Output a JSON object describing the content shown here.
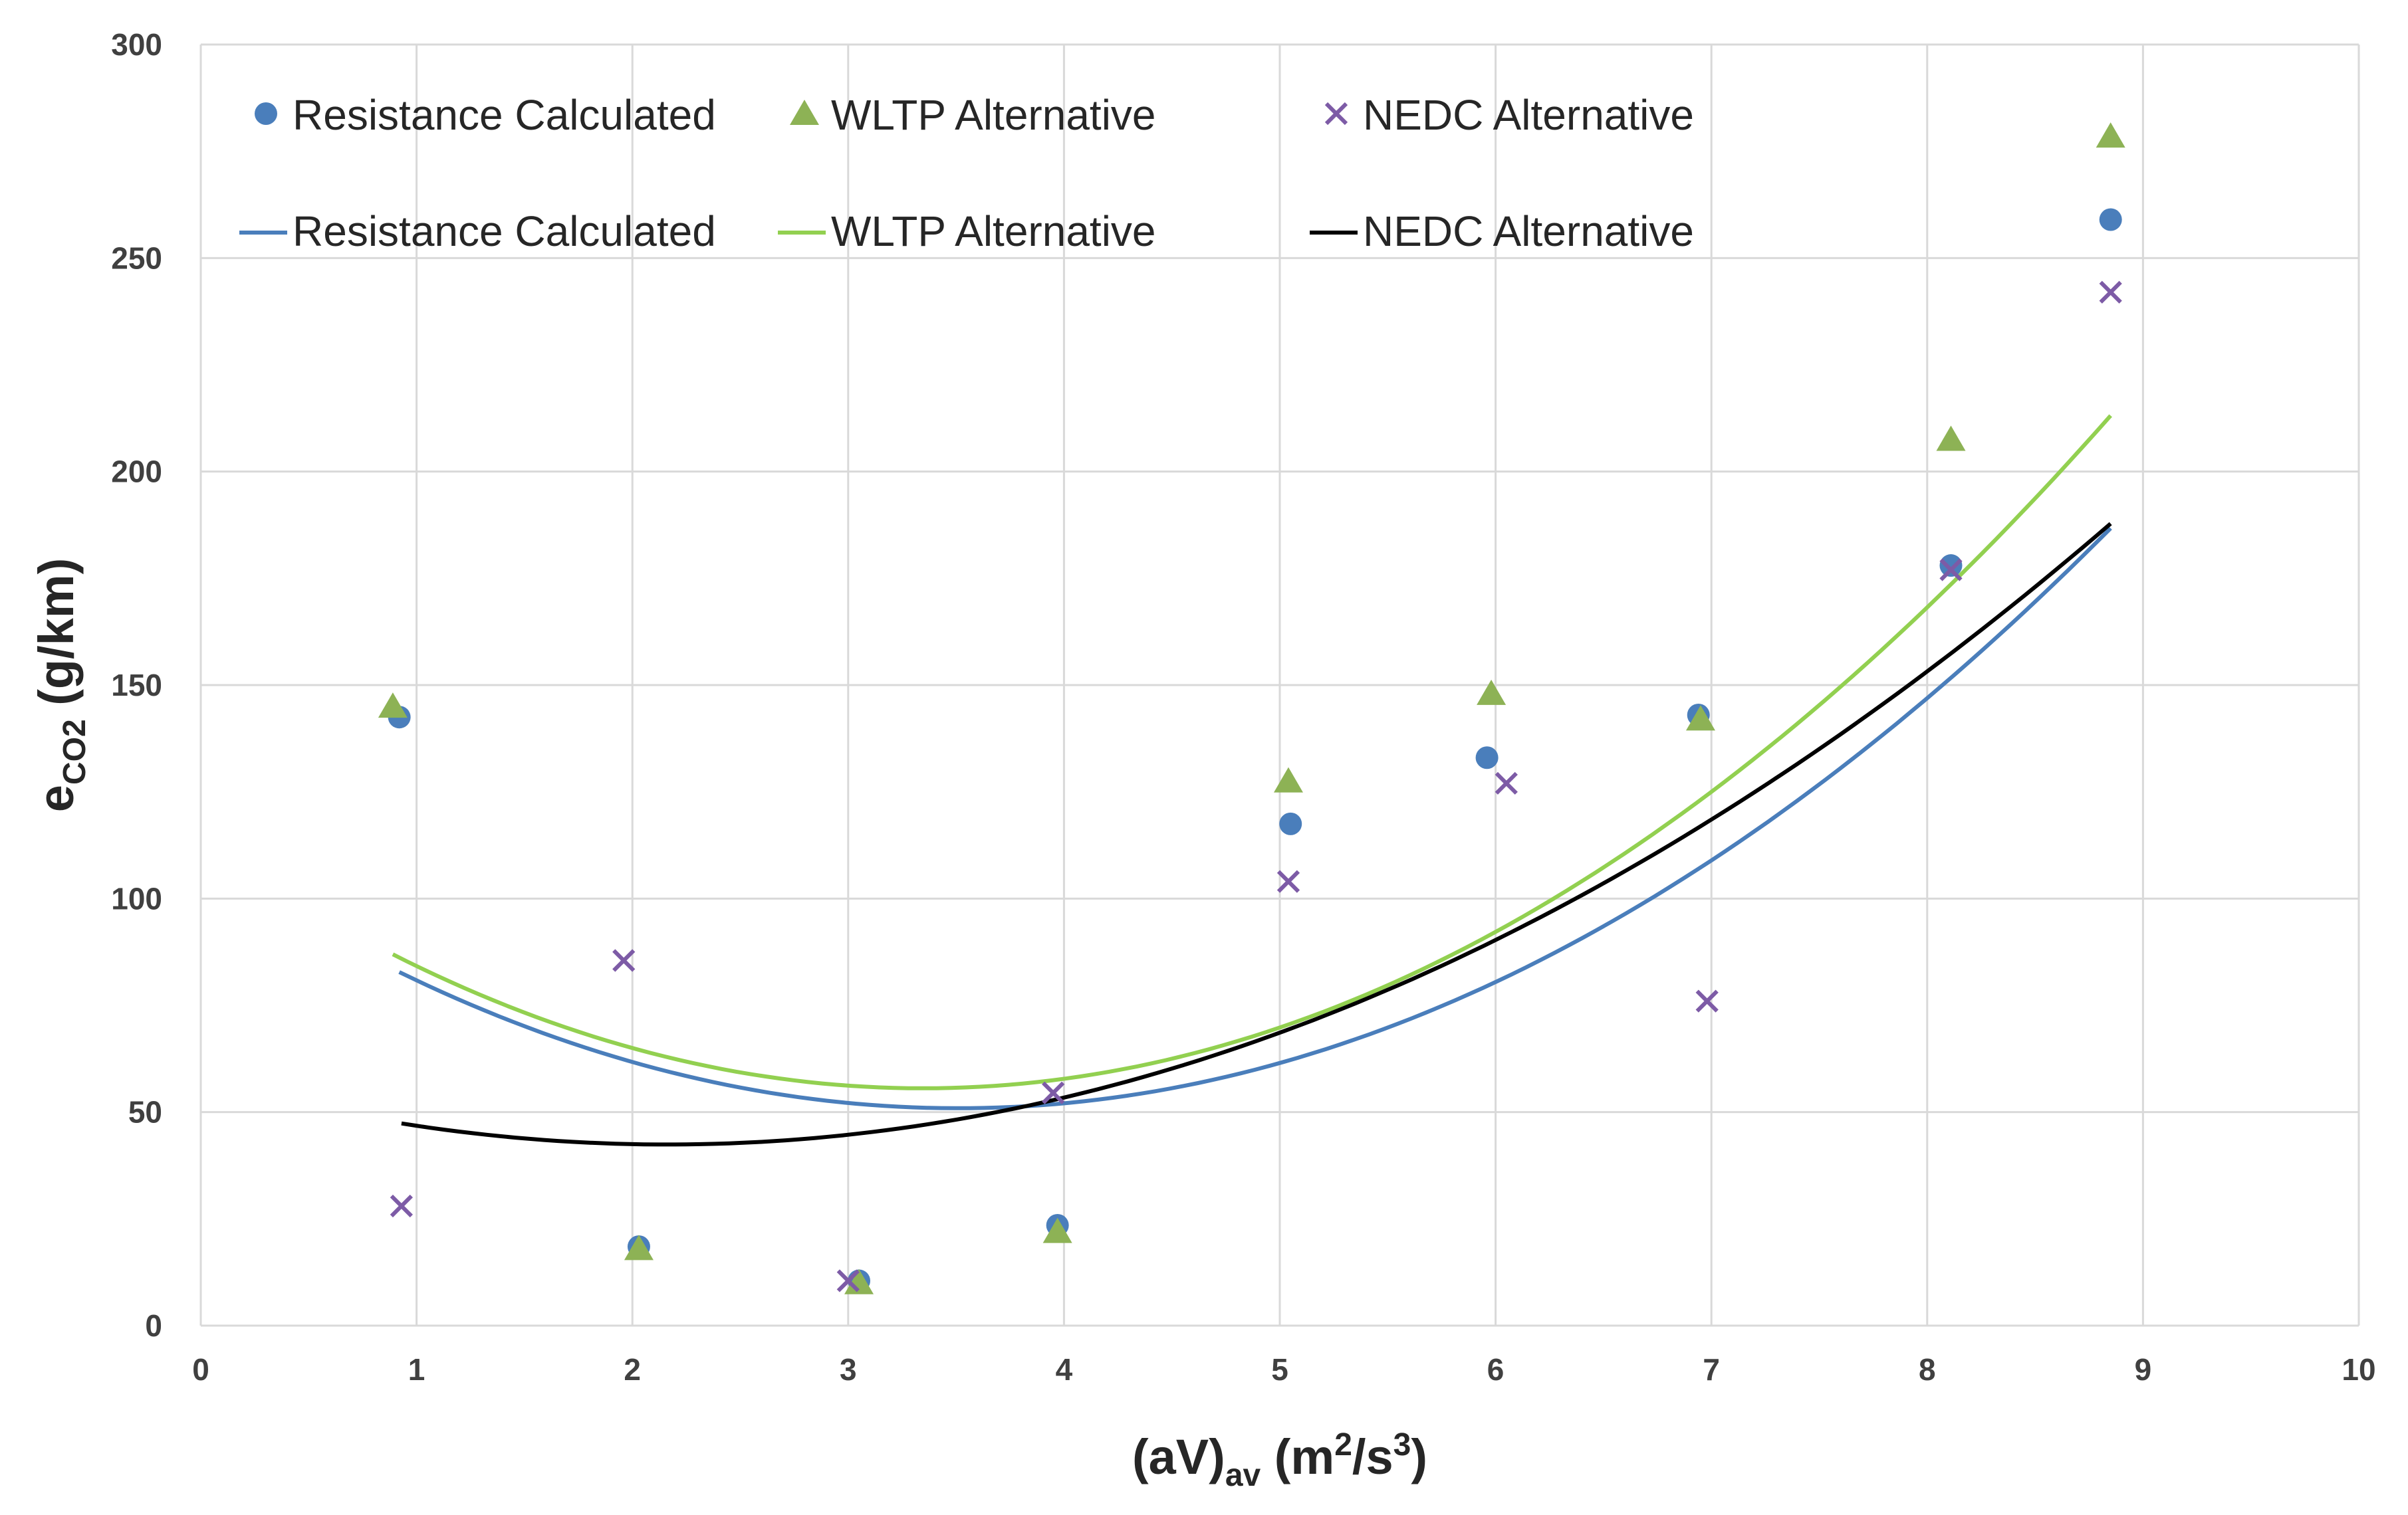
{
  "chart_data": {
    "type": "scatter",
    "xlabel": {
      "main": "(aV)",
      "sub": "av",
      "rest": " (m",
      "sup1": "2",
      "mid": "/s",
      "sup2": "3",
      "end": ")"
    },
    "ylabel": {
      "main": "e",
      "sub": "CO2",
      "rest": " (g/km)"
    },
    "xlim": [
      0,
      10
    ],
    "ylim": [
      0,
      300
    ],
    "xticks": [
      0,
      1,
      2,
      3,
      4,
      5,
      6,
      7,
      8,
      9,
      10
    ],
    "yticks": [
      0,
      50,
      100,
      150,
      200,
      250,
      300
    ],
    "grid": true,
    "legend_position": "top",
    "series": [
      {
        "name": "Resistance Calculated",
        "marker": "circle",
        "color": "#4a7ebb",
        "points": [
          [
            0.92,
            142.5
          ],
          [
            2.03,
            18.5
          ],
          [
            3.05,
            10.5
          ],
          [
            3.97,
            23.5
          ],
          [
            5.05,
            117.5
          ],
          [
            5.96,
            133
          ],
          [
            6.94,
            143
          ],
          [
            8.11,
            178
          ],
          [
            8.85,
            259
          ]
        ]
      },
      {
        "name": "WLTP Alternative",
        "marker": "triangle",
        "color": "#8db255",
        "points": [
          [
            0.89,
            145
          ],
          [
            2.03,
            18
          ],
          [
            3.05,
            10
          ],
          [
            3.97,
            22
          ],
          [
            5.04,
            127.5
          ],
          [
            5.98,
            148
          ],
          [
            6.95,
            142
          ],
          [
            8.11,
            207.5
          ],
          [
            8.85,
            278.5
          ]
        ]
      },
      {
        "name": "NEDC Alternative",
        "marker": "cross",
        "color": "#7d5ba6",
        "points": [
          [
            0.93,
            28
          ],
          [
            1.96,
            85.5
          ],
          [
            3.0,
            10.5
          ],
          [
            3.95,
            54.5
          ],
          [
            5.04,
            104
          ],
          [
            6.05,
            127
          ],
          [
            6.98,
            76
          ],
          [
            8.11,
            177
          ],
          [
            8.85,
            242
          ]
        ]
      }
    ],
    "trendlines": [
      {
        "name": "Resistance Calculated",
        "color": "#4a7ebb",
        "type": "polynomial",
        "x_range": [
          0.92,
          8.85
        ],
        "coefficients": [
          4.76,
          -33.4,
          109.5
        ]
      },
      {
        "name": "WLTP Alternative",
        "color": "#92d050",
        "type": "polynomial",
        "x_range": [
          0.89,
          8.85
        ],
        "coefficients": [
          5.2,
          -34.8,
          113.8
        ]
      },
      {
        "name": "NEDC Alternative",
        "color": "#000000",
        "type": "polynomial",
        "x_range": [
          0.93,
          8.85
        ],
        "coefficients": [
          3.25,
          -14.05,
          57.6
        ]
      }
    ]
  }
}
